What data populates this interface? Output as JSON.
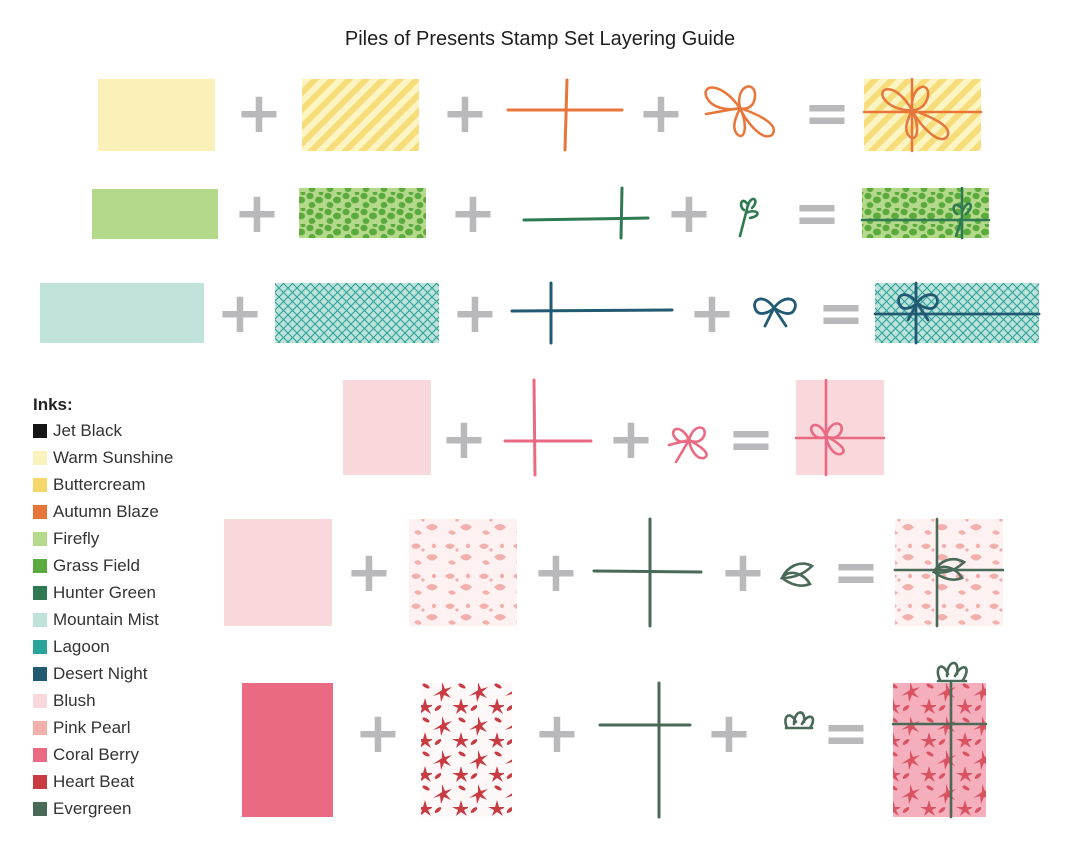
{
  "title": "Piles of Presents Stamp Set Layering Guide",
  "inks_heading": "Inks:",
  "inks": [
    {
      "name": "Jet Black",
      "color": "#151515"
    },
    {
      "name": "Warm Sunshine",
      "color": "#fbf3bf"
    },
    {
      "name": "Buttercream",
      "color": "#f5d76a"
    },
    {
      "name": "Autumn Blaze",
      "color": "#e8763a"
    },
    {
      "name": "Firefly",
      "color": "#b4d98a"
    },
    {
      "name": "Grass Field",
      "color": "#5aaa3d"
    },
    {
      "name": "Hunter Green",
      "color": "#2f7a52"
    },
    {
      "name": "Mountain Mist",
      "color": "#bfe3da"
    },
    {
      "name": "Lagoon",
      "color": "#2aa39b"
    },
    {
      "name": "Desert Night",
      "color": "#225a73"
    },
    {
      "name": "Blush",
      "color": "#f9d8dc"
    },
    {
      "name": "Pink Pearl",
      "color": "#f2b0ad"
    },
    {
      "name": "Coral Berry",
      "color": "#ea6a83"
    },
    {
      "name": "Heart Beat",
      "color": "#c93b42"
    },
    {
      "name": "Evergreen",
      "color": "#4a6a58"
    }
  ],
  "operators": {
    "plus": "+",
    "equals": "="
  },
  "symbol_color": "#b9b9bb",
  "rows": [
    {
      "base": "#fbf1b8",
      "pattern": "stripes",
      "pattern_color": "#f7dc7a",
      "pattern_bg": "#fdf4c3",
      "ribbon": "#e8763a",
      "bow": "bow-large"
    },
    {
      "base": "#b4d98a",
      "pattern": "dots",
      "pattern_color": "#5aaa3d",
      "pattern_bg": "#b4d98a",
      "ribbon": "#2f7a52",
      "bow": "sprig"
    },
    {
      "base": "#bfe3da",
      "pattern": "crosshatch",
      "pattern_color": "#2aa39b",
      "pattern_bg": "#bfe3da",
      "ribbon": "#225a73",
      "bow": "bow"
    },
    {
      "base": "#f9d8dc",
      "pattern": "none",
      "pattern_color": "",
      "pattern_bg": "#f9d8dc",
      "ribbon": "#ea6a83",
      "bow": "bow-small"
    },
    {
      "base": "#f9d8dc",
      "pattern": "holly",
      "pattern_color": "#f2b0ad",
      "pattern_bg": "#fdf1f1",
      "ribbon": "#4a6a58",
      "bow": "leaf"
    },
    {
      "base": "#ea6a83",
      "pattern": "floral",
      "pattern_color": "#c93b42",
      "pattern_bg": "#fff8f8",
      "ribbon": "#4a6a58",
      "bow": "topknot"
    }
  ]
}
